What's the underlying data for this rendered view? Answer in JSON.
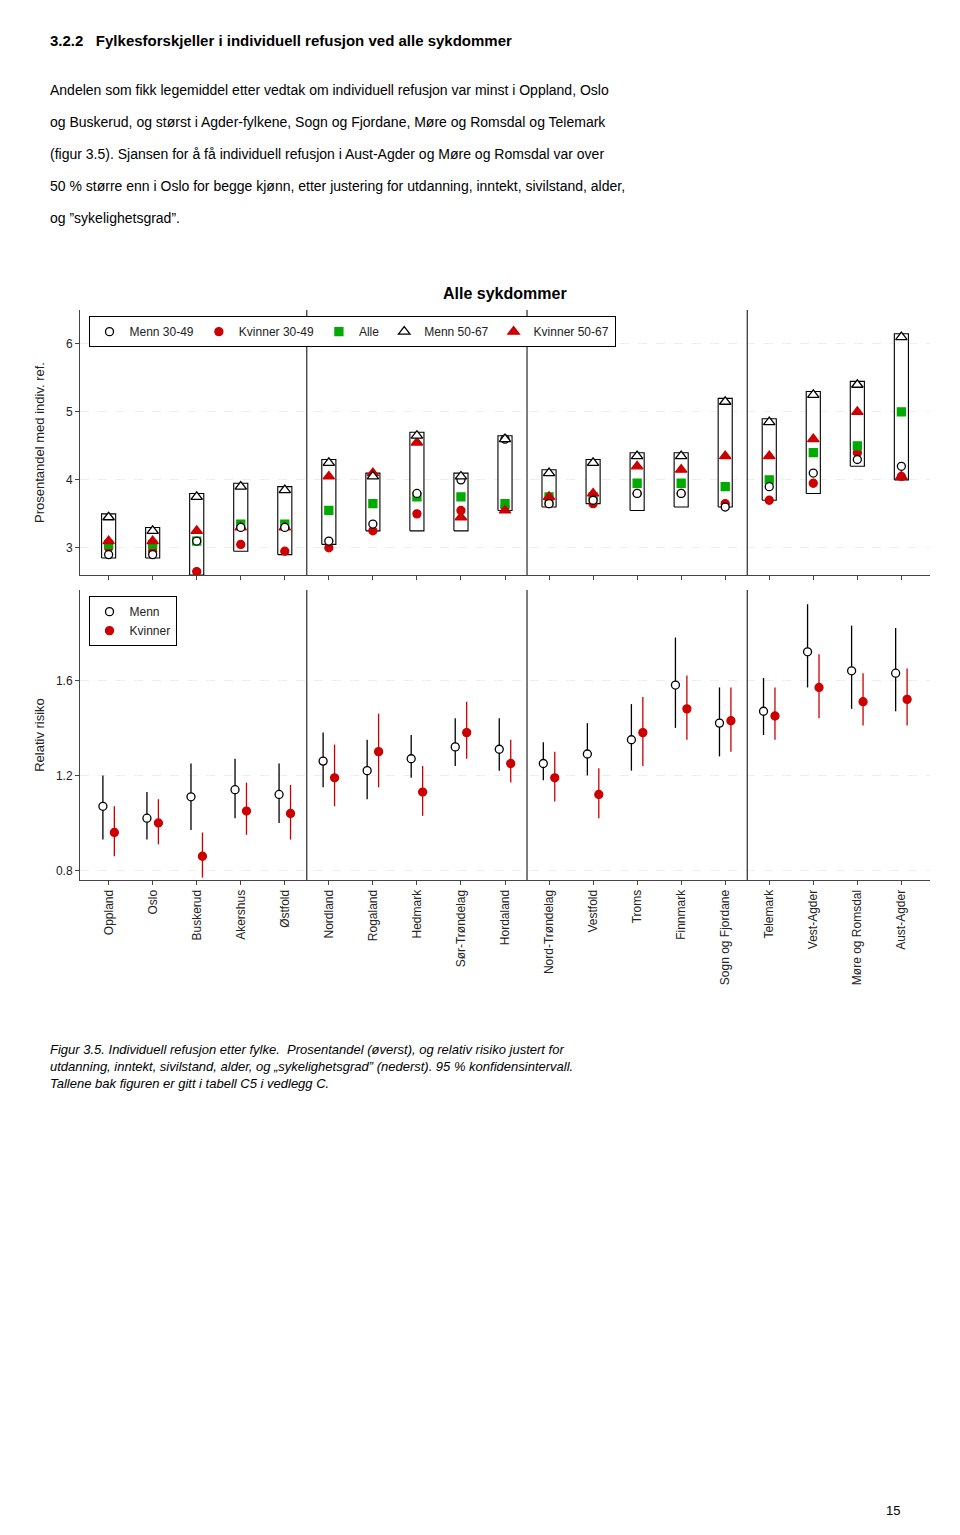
{
  "heading": "3.2.2   Fylkesforskjeller i individuell refusjon ved alle sykdommer",
  "body": [
    "Andelen som fikk legemiddel etter vedtak om individuell refusjon var minst i Oppland, Oslo",
    "og Buskerud, og størst i Agder-fylkene, Sogn og Fjordane, Møre og Romsdal og Telemark",
    "(figur 3.5). Sjansen for å få individuell refusjon i Aust-Agder og Møre og Romsdal var over",
    "50 % større enn i Oslo for begge kjønn, etter justering for utdanning, inntekt, sivilstand, alder,",
    "og ”sykelighetsgrad”."
  ],
  "caption": "Figur 3.5. Individuell refusjon etter fylke.  Prosentandel (øverst), og relativ risiko justert for\nutdanning, inntekt, sivilstand, alder, og „sykelighetsgrad” (nederst). 95 % konfidensintervall.\nTallene bak figuren er gitt i tabell C5 i vedlegg C.",
  "page_number": "15",
  "chart_data": [
    {
      "type": "scatter",
      "title": "Alle sykdommer",
      "ylabel": "Prosentandel med indiv. ref.",
      "categories": [
        "Oppland",
        "Oslo",
        "Buskerud",
        "Akershus",
        "Østfold",
        "Nordland",
        "Rogaland",
        "Hedmark",
        "Sør-Trøndelag",
        "Hordaland",
        "Nord-Trøndelag",
        "Vestfold",
        "Troms",
        "Finnmark",
        "Sogn og Fjordane",
        "Telemark",
        "Vest-Agder",
        "Møre og Romsdal",
        "Aust-Agder"
      ],
      "section_starts": [
        "Nordland",
        "Nord-Trøndelag",
        "Telemark"
      ],
      "series": [
        {
          "name": "Menn 30-49",
          "color": "#000000",
          "marker": "circle-open",
          "values": [
            2.9,
            2.9,
            3.1,
            3.3,
            3.3,
            3.1,
            3.35,
            3.8,
            4.0,
            4.6,
            3.65,
            3.7,
            3.8,
            3.8,
            3.6,
            3.9,
            4.1,
            4.3,
            4.2
          ]
        },
        {
          "name": "Kvinner 30-49",
          "color": "#cc0000",
          "marker": "circle",
          "values": [
            3.0,
            2.95,
            2.65,
            3.05,
            2.95,
            3.0,
            3.25,
            3.5,
            3.55,
            3.6,
            3.65,
            3.65,
            3.8,
            3.8,
            3.65,
            3.7,
            3.95,
            4.4,
            4.05
          ]
        },
        {
          "name": "Alle",
          "color": "#00aa00",
          "marker": "square",
          "values": [
            3.05,
            3.05,
            3.1,
            3.35,
            3.35,
            3.55,
            3.65,
            3.75,
            3.75,
            3.65,
            3.75,
            3.75,
            3.95,
            3.95,
            3.9,
            4.0,
            4.4,
            4.5,
            5.0
          ]
        },
        {
          "name": "Menn 50-67",
          "color": "#000000",
          "marker": "triangle-up-open",
          "values": [
            3.45,
            3.25,
            3.75,
            3.9,
            3.85,
            4.25,
            4.05,
            4.65,
            4.05,
            4.6,
            4.1,
            4.25,
            4.35,
            4.35,
            5.15,
            4.85,
            5.25,
            5.4,
            6.1
          ]
        },
        {
          "name": "Kvinner 50-67",
          "color": "#cc0000",
          "marker": "triangle-up",
          "values": [
            3.1,
            3.1,
            3.25,
            3.3,
            3.3,
            4.05,
            4.1,
            4.55,
            3.45,
            3.55,
            3.75,
            3.8,
            4.2,
            4.15,
            4.35,
            4.35,
            4.6,
            5.0,
            4.05
          ]
        }
      ],
      "box_low": [
        2.85,
        2.85,
        2.6,
        2.95,
        2.9,
        3.05,
        3.25,
        3.25,
        3.25,
        3.55,
        3.6,
        3.65,
        3.55,
        3.6,
        3.6,
        3.7,
        3.8,
        4.2,
        4.0
      ],
      "box_high": [
        3.5,
        3.3,
        3.8,
        3.95,
        3.9,
        4.3,
        4.1,
        4.7,
        4.1,
        4.65,
        4.15,
        4.3,
        4.4,
        4.4,
        5.2,
        4.9,
        5.3,
        5.45,
        6.15
      ],
      "ylim": [
        2.6,
        6.5
      ],
      "yticks": [
        3,
        4,
        5,
        6
      ],
      "grid": true,
      "legend": "upper left",
      "tick_labels": "y"
    },
    {
      "type": "scatter",
      "ylabel": "Relativ risiko",
      "categories": [
        "Oppland",
        "Oslo",
        "Buskerud",
        "Akershus",
        "Østfold",
        "Nordland",
        "Rogaland",
        "Hedmark",
        "Sør-Trøndelag",
        "Hordaland",
        "Nord-Trøndelag",
        "Vestfold",
        "Troms",
        "Finnmark",
        "Sogn og Fjordane",
        "Telemark",
        "Vest-Agder",
        "Møre og Romsdal",
        "Aust-Agder"
      ],
      "section_starts": [
        "Nordland",
        "Nord-Trøndelag",
        "Telemark"
      ],
      "series": [
        {
          "name": "Menn",
          "color": "#000000",
          "marker": "circle-open",
          "values": [
            1.07,
            1.02,
            1.11,
            1.14,
            1.12,
            1.26,
            1.22,
            1.27,
            1.32,
            1.31,
            1.25,
            1.29,
            1.35,
            1.58,
            1.42,
            1.47,
            1.72,
            1.64,
            1.63
          ],
          "ci_low": [
            0.93,
            0.93,
            0.97,
            1.02,
            1.0,
            1.15,
            1.1,
            1.19,
            1.24,
            1.22,
            1.18,
            1.2,
            1.22,
            1.4,
            1.28,
            1.37,
            1.57,
            1.48,
            1.47
          ],
          "ci_high": [
            1.2,
            1.13,
            1.25,
            1.27,
            1.25,
            1.38,
            1.35,
            1.37,
            1.44,
            1.44,
            1.34,
            1.42,
            1.5,
            1.78,
            1.57,
            1.61,
            1.92,
            1.83,
            1.82
          ]
        },
        {
          "name": "Kvinner",
          "color": "#cc0000",
          "marker": "circle",
          "values": [
            0.96,
            1.0,
            0.86,
            1.05,
            1.04,
            1.19,
            1.3,
            1.13,
            1.38,
            1.25,
            1.19,
            1.12,
            1.38,
            1.48,
            1.43,
            1.45,
            1.57,
            1.51,
            1.52
          ],
          "ci_low": [
            0.86,
            0.91,
            0.77,
            0.95,
            0.93,
            1.07,
            1.15,
            1.03,
            1.27,
            1.17,
            1.09,
            1.02,
            1.24,
            1.35,
            1.3,
            1.35,
            1.44,
            1.41,
            1.41
          ],
          "ci_high": [
            1.07,
            1.1,
            0.96,
            1.17,
            1.16,
            1.33,
            1.46,
            1.24,
            1.51,
            1.35,
            1.3,
            1.23,
            1.53,
            1.62,
            1.57,
            1.57,
            1.71,
            1.63,
            1.65
          ]
        }
      ],
      "ylim": [
        0.76,
        1.98
      ],
      "yticks": [
        0.8,
        1.2,
        1.6
      ],
      "grid": true,
      "legend": "upper left"
    }
  ]
}
